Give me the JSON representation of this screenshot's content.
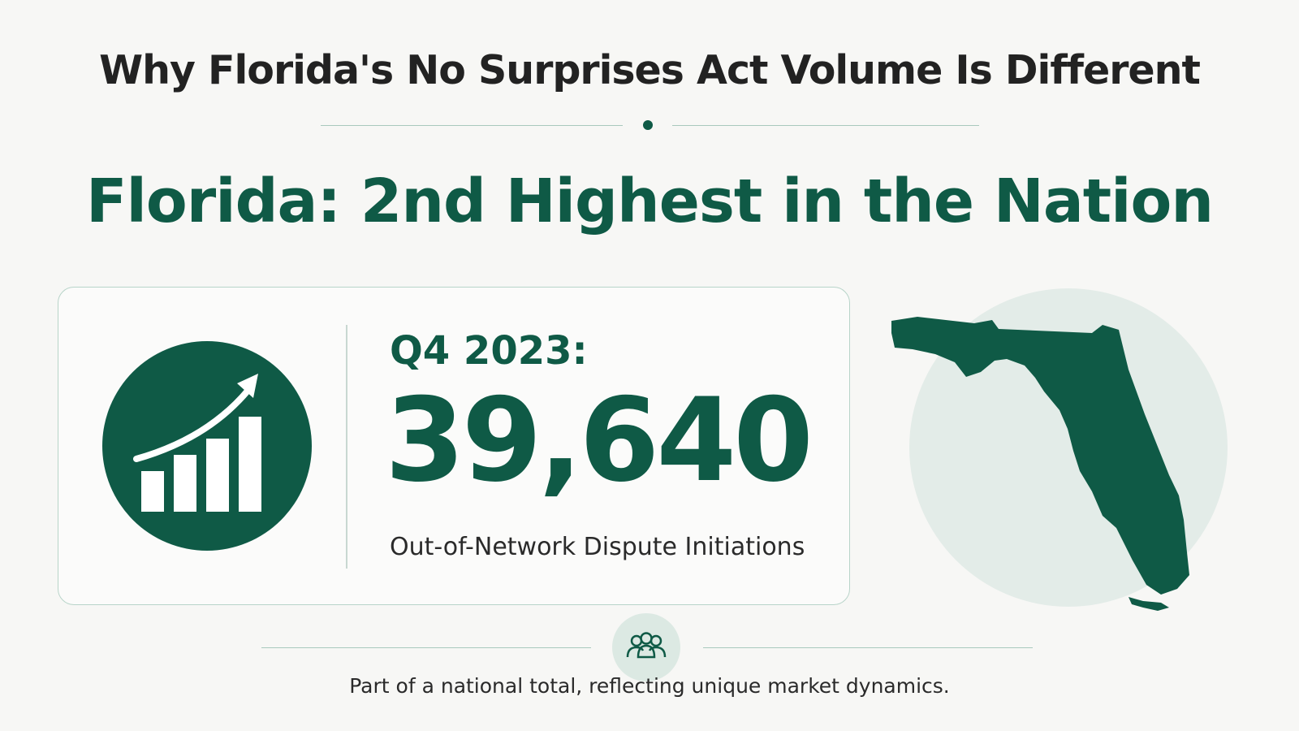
{
  "header": {
    "title": "Why Florida's No Surprises Act Volume Is Different",
    "headline": "Florida: 2nd Highest in the Nation"
  },
  "stat_card": {
    "period": "Q4 2023:",
    "value": "39,640",
    "caption": "Out-of-Network Dispute Initiations",
    "icon": "growth-chart-icon"
  },
  "map": {
    "icon": "florida-map-icon"
  },
  "footer": {
    "icon": "people-group-icon",
    "note": "Part of a national total, reflecting unique market dynamics."
  },
  "colors": {
    "brand_green": "#0f5a46",
    "light_green": "#e3ece8",
    "rule": "#a9c9bd",
    "text_dark": "#222222"
  }
}
